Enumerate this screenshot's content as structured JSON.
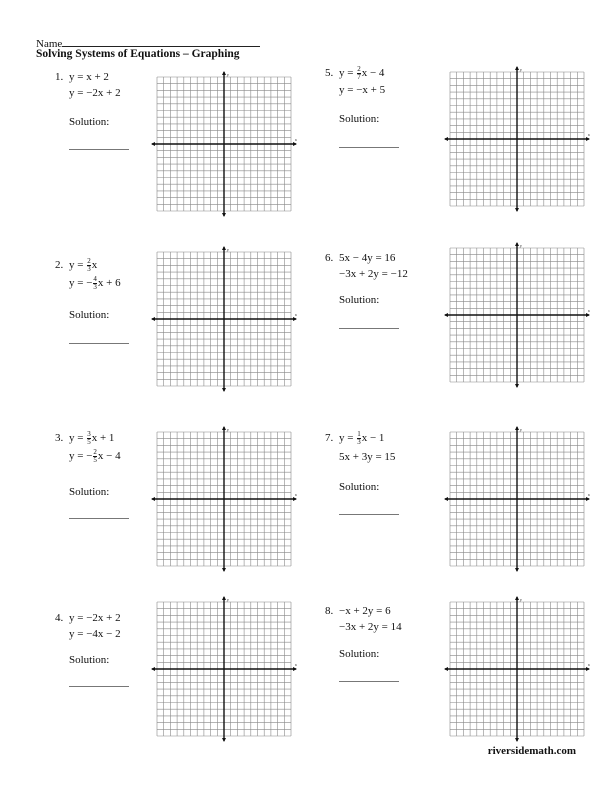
{
  "header": {
    "name_label": "Name",
    "title": "Solving Systems of Equations – Graphing"
  },
  "solution_label": "Solution:",
  "problems": [
    {
      "number": "1.",
      "lines": [
        [
          {
            "t": "y = x + 2"
          }
        ],
        [
          {
            "t": "y = −2x + 2"
          }
        ]
      ]
    },
    {
      "number": "2.",
      "lines": [
        [
          {
            "t": "y = "
          },
          {
            "n": "2",
            "d": "3"
          },
          {
            "t": "x"
          }
        ],
        [
          {
            "t": "y = −"
          },
          {
            "n": "4",
            "d": "3"
          },
          {
            "t": "x + 6"
          }
        ]
      ]
    },
    {
      "number": "3.",
      "lines": [
        [
          {
            "t": "y = "
          },
          {
            "n": "3",
            "d": "5"
          },
          {
            "t": "x + 1"
          }
        ],
        [
          {
            "t": "y = −"
          },
          {
            "n": "2",
            "d": "5"
          },
          {
            "t": "x − 4"
          }
        ]
      ]
    },
    {
      "number": "4.",
      "lines": [
        [
          {
            "t": "y = −2x + 2"
          }
        ],
        [
          {
            "t": "y = −4x − 2"
          }
        ]
      ]
    },
    {
      "number": "5.",
      "lines": [
        [
          {
            "t": "y = "
          },
          {
            "n": "2",
            "d": "7"
          },
          {
            "t": "x − 4"
          }
        ],
        [
          {
            "t": "y = −x + 5"
          }
        ]
      ]
    },
    {
      "number": "6.",
      "lines": [
        [
          {
            "t": "5x − 4y = 16"
          }
        ],
        [
          {
            "t": "−3x + 2y = −12"
          }
        ]
      ]
    },
    {
      "number": "7.",
      "lines": [
        [
          {
            "t": "y = "
          },
          {
            "n": "1",
            "d": "3"
          },
          {
            "t": "x − 1"
          }
        ],
        [
          {
            "t": "5x + 3y = 15"
          }
        ]
      ]
    },
    {
      "number": "8.",
      "lines": [
        [
          {
            "t": "−x + 2y = 6"
          }
        ],
        [
          {
            "t": "−3x + 2y = 14"
          }
        ]
      ]
    }
  ],
  "axis_labels": {
    "x": "x",
    "y": "y"
  },
  "footer": "riversidemath.com"
}
